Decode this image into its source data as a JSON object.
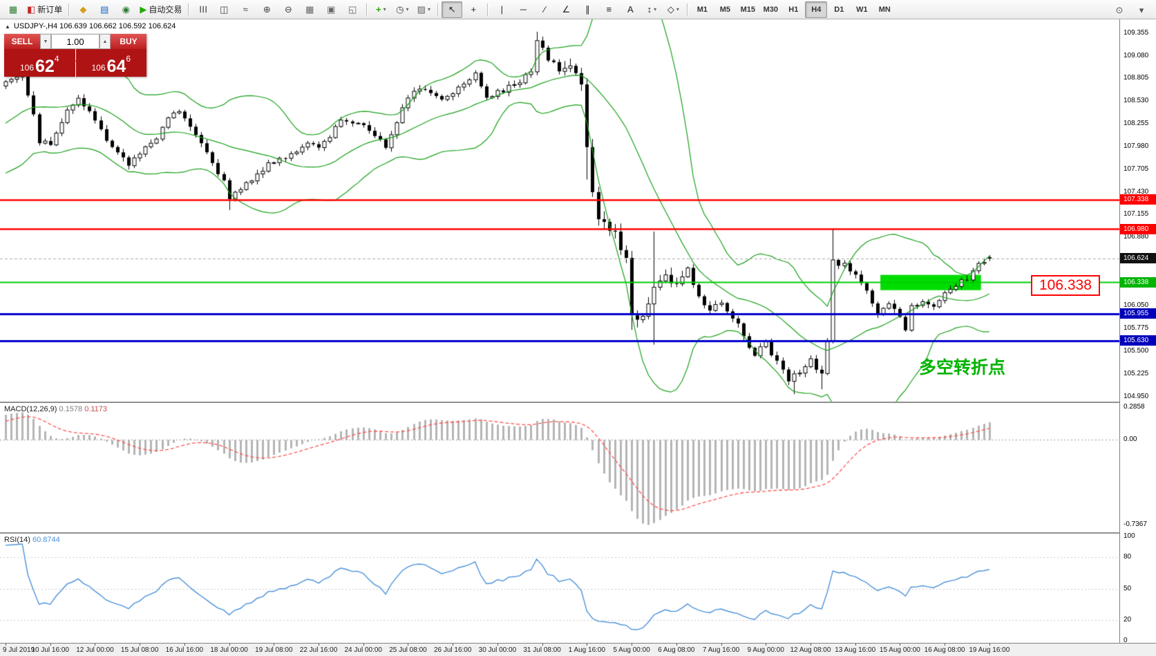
{
  "chart": {
    "header": "USDJPY-,H4  106.639 106.662 106.592 106.624"
  },
  "one_click": {
    "collapse_icon": "▲",
    "sell_label": "SELL",
    "buy_label": "BUY",
    "volume": "1.00",
    "spin_down": "▼",
    "spin_up": "▲",
    "sell_price": {
      "base": "106",
      "big": "62",
      "sup": "4"
    },
    "buy_price": {
      "base": "106",
      "big": "64",
      "sup": "6"
    }
  },
  "indicators": {
    "macd_name": "MACD(12,26,9)",
    "macd_main": "0.1578",
    "macd_signal": "0.1173",
    "rsi_name": "RSI(14)",
    "rsi_value": "60.8744"
  },
  "annotations": {
    "price_label": "106.338",
    "note": "多空转折点"
  },
  "toolbar": {
    "groups": [
      {
        "items": [
          {
            "name": "new-chart-icon",
            "glyph": "▦",
            "color": "#2e7d32"
          },
          {
            "name": "new-order-button",
            "glyph": "◧",
            "color": "#c62828",
            "label": "新订单"
          }
        ]
      },
      {
        "items": [
          {
            "name": "metaeditor-icon",
            "glyph": "◆",
            "color": "#d4a017"
          },
          {
            "name": "market-watch-icon",
            "glyph": "▤",
            "color": "#1565c0"
          },
          {
            "name": "navigator-icon",
            "glyph": "◉",
            "color": "#2e7d32"
          },
          {
            "name": "autotrading-button",
            "glyph": "▶",
            "color": "#1faa00",
            "label": "自动交易"
          }
        ]
      },
      {
        "items": [
          {
            "name": "bar-chart-icon",
            "glyph": "☰",
            "color": "#444",
            "rotate": true
          },
          {
            "name": "candlestick-chart-icon",
            "glyph": "◫",
            "color": "#444"
          },
          {
            "name": "line-chart-icon",
            "glyph": "≈",
            "color": "#444"
          },
          {
            "name": "zoom-in-icon",
            "glyph": "⊕",
            "color": "#444"
          },
          {
            "name": "zoom-out-icon",
            "glyph": "⊖",
            "color": "#444"
          },
          {
            "name": "grid-icon",
            "glyph": "▦",
            "color": "#666"
          },
          {
            "name": "cascade-windows-icon",
            "glyph": "▣",
            "color": "#666"
          },
          {
            "name": "tile-windows-icon",
            "glyph": "◱",
            "color": "#666"
          }
        ]
      },
      {
        "items": [
          {
            "name": "indicators-icon",
            "glyph": "+",
            "color": "#1faa00",
            "caret": true,
            "bold": true
          },
          {
            "name": "periods-icon",
            "glyph": "◷",
            "color": "#444",
            "caret": true
          },
          {
            "name": "templates-icon",
            "glyph": "▨",
            "color": "#666",
            "caret": true
          }
        ]
      },
      {
        "items": [
          {
            "name": "cursor-icon",
            "glyph": "↖",
            "color": "#222",
            "active": true
          },
          {
            "name": "crosshair-icon",
            "glyph": "+",
            "color": "#222"
          }
        ]
      },
      {
        "items": [
          {
            "name": "vertical-line-icon",
            "glyph": "|",
            "color": "#222"
          },
          {
            "name": "horizontal-line-icon",
            "glyph": "─",
            "color": "#222"
          },
          {
            "name": "trendline-icon",
            "glyph": "∕",
            "color": "#222"
          },
          {
            "name": "angle-line-icon",
            "glyph": "∠",
            "color": "#222"
          },
          {
            "name": "equidistant-channel-icon",
            "glyph": "∥",
            "color": "#222"
          },
          {
            "name": "fibonacci-icon",
            "glyph": "≡",
            "color": "#222"
          },
          {
            "name": "text-label-icon",
            "glyph": "A",
            "color": "#222"
          },
          {
            "name": "arrow-objects-icon",
            "glyph": "↕",
            "color": "#222",
            "caret": true
          },
          {
            "name": "shapes-icon",
            "glyph": "◇",
            "color": "#222",
            "caret": true
          }
        ]
      }
    ],
    "timeframes": [
      "M1",
      "M5",
      "M15",
      "M30",
      "H1",
      "H4",
      "D1",
      "W1",
      "MN"
    ],
    "active_timeframe": "H4",
    "right_items": [
      {
        "name": "search-icon",
        "glyph": "⊙",
        "color": "#555"
      },
      {
        "name": "window-menu-icon",
        "glyph": "▾",
        "color": "#555"
      }
    ]
  },
  "chart_data": {
    "type": "candlestick",
    "symbol": "USDJPY-",
    "timeframe": "H4",
    "ylim": [
      104.89,
      109.52
    ],
    "bars_visible": 177,
    "bar_label_step": 8,
    "last_bar": {
      "o": 106.639,
      "h": 106.662,
      "l": 106.592,
      "c": 106.624
    },
    "close_anchors": [
      [
        -60,
        107.9
      ],
      [
        -44,
        107.7
      ],
      [
        -30,
        108.05
      ],
      [
        -22,
        107.85
      ],
      [
        -14,
        107.95
      ],
      [
        -8,
        108.3
      ],
      [
        -4,
        108.6
      ],
      [
        -1,
        108.72
      ],
      [
        0,
        108.78
      ],
      [
        3,
        108.88
      ],
      [
        5,
        108.35
      ],
      [
        6,
        108.05
      ],
      [
        8,
        108.0
      ],
      [
        11,
        108.45
      ],
      [
        13,
        108.55
      ],
      [
        16,
        108.3
      ],
      [
        19,
        107.95
      ],
      [
        22,
        107.78
      ],
      [
        24,
        107.88
      ],
      [
        27,
        108.1
      ],
      [
        29,
        108.35
      ],
      [
        31,
        108.42
      ],
      [
        34,
        108.15
      ],
      [
        37,
        107.8
      ],
      [
        39,
        107.55
      ],
      [
        40,
        107.32
      ],
      [
        42,
        107.48
      ],
      [
        45,
        107.65
      ],
      [
        48,
        107.8
      ],
      [
        51,
        107.9
      ],
      [
        54,
        108.0
      ],
      [
        56,
        107.95
      ],
      [
        58,
        108.12
      ],
      [
        60,
        108.3
      ],
      [
        63,
        108.28
      ],
      [
        66,
        108.12
      ],
      [
        68,
        107.98
      ],
      [
        70,
        108.3
      ],
      [
        72,
        108.6
      ],
      [
        75,
        108.68
      ],
      [
        78,
        108.55
      ],
      [
        81,
        108.7
      ],
      [
        84,
        108.88
      ],
      [
        86,
        108.58
      ],
      [
        89,
        108.65
      ],
      [
        92,
        108.78
      ],
      [
        94,
        108.88
      ],
      [
        95,
        109.25
      ],
      [
        96,
        109.15
      ],
      [
        97,
        109.05
      ],
      [
        99,
        108.9
      ],
      [
        101,
        108.95
      ],
      [
        103,
        108.78
      ],
      [
        104,
        107.95
      ],
      [
        105,
        107.4
      ],
      [
        106,
        107.1
      ],
      [
        107,
        107.05
      ],
      [
        109,
        106.9
      ],
      [
        111,
        106.6
      ],
      [
        112,
        105.98
      ],
      [
        113,
        105.88
      ],
      [
        114,
        105.92
      ],
      [
        116,
        106.3
      ],
      [
        118,
        106.4
      ],
      [
        120,
        106.32
      ],
      [
        122,
        106.48
      ],
      [
        124,
        106.18
      ],
      [
        126,
        106.02
      ],
      [
        128,
        106.12
      ],
      [
        130,
        105.92
      ],
      [
        132,
        105.7
      ],
      [
        134,
        105.45
      ],
      [
        136,
        105.62
      ],
      [
        138,
        105.35
      ],
      [
        140,
        105.18
      ],
      [
        142,
        105.22
      ],
      [
        144,
        105.38
      ],
      [
        146,
        105.2
      ],
      [
        147,
        105.6
      ],
      [
        148,
        106.6
      ],
      [
        150,
        106.55
      ],
      [
        152,
        106.42
      ],
      [
        154,
        106.22
      ],
      [
        156,
        105.95
      ],
      [
        158,
        106.05
      ],
      [
        160,
        105.92
      ],
      [
        161,
        105.78
      ],
      [
        162,
        106.05
      ],
      [
        164,
        106.12
      ],
      [
        166,
        106.02
      ],
      [
        168,
        106.18
      ],
      [
        170,
        106.3
      ],
      [
        172,
        106.38
      ],
      [
        174,
        106.55
      ],
      [
        176,
        106.624
      ]
    ],
    "wick_overrides": [
      [
        40,
        null,
        107.21
      ],
      [
        95,
        109.37,
        null
      ],
      [
        104,
        null,
        107.58
      ],
      [
        112,
        null,
        105.76
      ],
      [
        116,
        106.95,
        105.58
      ],
      [
        141,
        null,
        104.98
      ],
      [
        146,
        null,
        105.04
      ],
      [
        148,
        106.98,
        null
      ]
    ],
    "overlays": {
      "bollinger": {
        "period": 20,
        "deviation": 2,
        "color": "#18a018"
      }
    },
    "levels": [
      {
        "price": 107.338,
        "color": "#ff0000",
        "width": 2.5
      },
      {
        "price": 106.98,
        "color": "#ff0000",
        "width": 2.5
      },
      {
        "price": 106.338,
        "color": "#00cc00",
        "width": 2
      },
      {
        "price": 105.955,
        "color": "#0000cc",
        "width": 3
      },
      {
        "price": 105.63,
        "color": "#0000cc",
        "width": 3
      }
    ],
    "current_price_line": {
      "price": 106.624,
      "color": "#aaaaaa"
    },
    "highlight_rect": {
      "from_bar": 157,
      "to_bar": 174,
      "price_top": 106.425,
      "price_bottom": 106.24,
      "color": "#00dd00"
    },
    "price_ticks": [
      [
        "109.355",
        109.355
      ],
      [
        "109.080",
        109.08
      ],
      [
        "108.805",
        108.805
      ],
      [
        "108.530",
        108.53
      ],
      [
        "108.255",
        108.255
      ],
      [
        "107.980",
        107.98
      ],
      [
        "107.705",
        107.705
      ],
      [
        "107.430",
        107.43
      ],
      [
        "107.155",
        107.155
      ],
      [
        "106.880",
        106.88
      ],
      [
        "106.050",
        106.05
      ],
      [
        "105.775",
        105.775
      ],
      [
        "105.500",
        105.5
      ],
      [
        "105.225",
        105.225
      ],
      [
        "104.950",
        104.95
      ]
    ],
    "price_tags": [
      [
        "107.338",
        107.338,
        "#ff0000"
      ],
      [
        "106.980",
        106.98,
        "#ff0000"
      ],
      [
        "106.624",
        106.624,
        "#111111"
      ],
      [
        "106.338",
        106.338,
        "#00b400"
      ],
      [
        "105.955",
        105.955,
        "#0000bb"
      ],
      [
        "105.630",
        105.63,
        "#0000bb"
      ]
    ],
    "macd": {
      "params": [
        12,
        26,
        9
      ],
      "value_main": 0.1578,
      "value_signal": 0.1173,
      "ylim": [
        0.32,
        -0.8
      ],
      "ticks": [
        [
          "0.2858",
          0.2858
        ],
        [
          "0.00",
          0
        ],
        [
          "-0.7367",
          -0.7367
        ]
      ],
      "tick_values": [
        0.2858,
        0,
        -0.7367
      ],
      "hist_color": "#b4b4b4",
      "signal_color": "#ff5050"
    },
    "rsi": {
      "period": 14,
      "value": 60.8744,
      "ticks": [
        [
          "100",
          100
        ],
        [
          "80",
          80
        ],
        [
          "50",
          50
        ],
        [
          "20",
          20
        ],
        [
          "0",
          0
        ]
      ],
      "levels": [
        80,
        50,
        20
      ],
      "color": "#4a90d9"
    },
    "dates": [
      "9 Jul 2019",
      "10 Jul 16:00",
      "12 Jul 00:00",
      "15 Jul 08:00",
      "16 Jul 16:00",
      "18 Jul 00:00",
      "19 Jul 08:00",
      "22 Jul 16:00",
      "24 Jul 00:00",
      "25 Jul 08:00",
      "26 Jul 16:00",
      "30 Jul 00:00",
      "31 Jul 08:00",
      "1 Aug 16:00",
      "5 Aug 00:00",
      "6 Aug 08:00",
      "7 Aug 16:00",
      "9 Aug 00:00",
      "12 Aug 08:00",
      "13 Aug 16:00",
      "15 Aug 00:00",
      "16 Aug 08:00",
      "19 Aug 16:00"
    ]
  }
}
